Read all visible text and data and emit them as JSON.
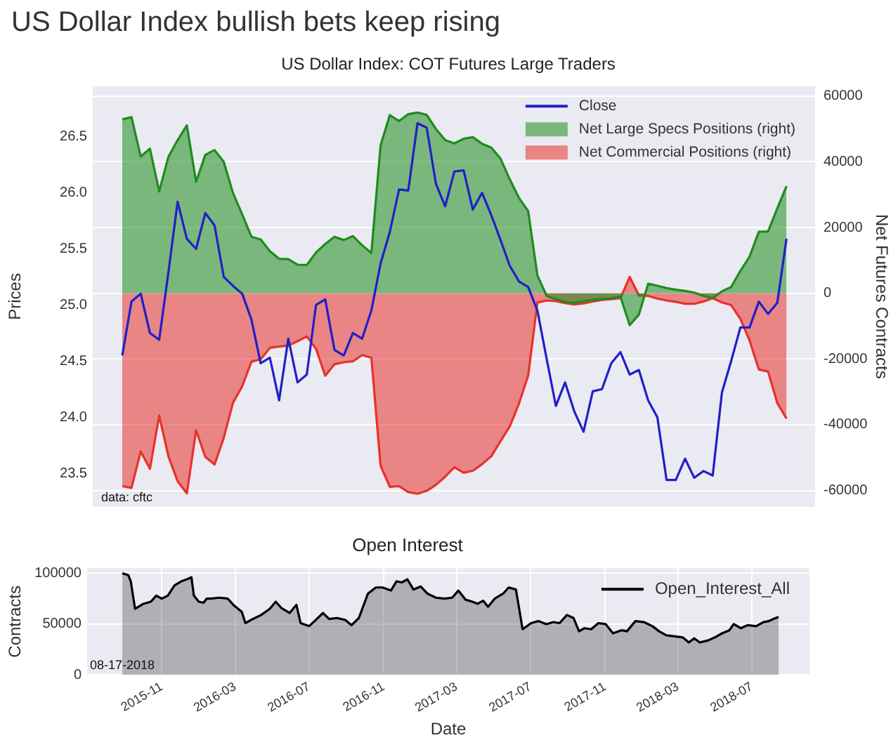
{
  "chart_data": [
    {
      "type": "line",
      "title": "US Dollar Index bullish bets keep rising",
      "subtitle": "US Dollar Index: COT Futures Large Traders",
      "ylabel": "Prices",
      "y2label": "Net Futures Contracts",
      "categories": [
        null,
        null,
        null,
        null,
        null,
        null,
        null,
        null,
        null,
        null,
        null,
        null,
        null,
        null,
        null,
        null,
        null,
        null,
        null,
        null,
        null,
        null,
        null,
        null,
        null,
        null,
        null,
        null,
        null,
        null,
        null,
        null,
        null,
        null,
        null,
        null,
        null,
        null,
        null,
        null,
        null,
        null,
        null,
        null,
        null,
        null,
        null,
        null,
        null,
        null,
        null,
        null,
        null,
        null,
        null,
        null,
        null,
        null,
        null,
        null,
        null,
        null,
        null,
        null,
        null,
        null,
        null,
        null,
        null,
        null,
        null,
        null,
        null
      ],
      "ylim": [
        23.2,
        26.95
      ],
      "yticks": [
        23.5,
        {
          "value": 24,
          "label": "24.0"
        },
        24.5,
        {
          "value": 25,
          "label": "25.0"
        },
        25.5,
        {
          "value": 26,
          "label": "26.0"
        },
        26.5
      ],
      "y2lim": [
        -65000,
        63000
      ],
      "y2ticks": [
        -60000,
        -40000,
        -20000,
        0,
        20000,
        40000,
        60000
      ],
      "tick_labels": "y",
      "grid": "y",
      "legend": "top right",
      "annotations": [
        "data: cftc"
      ],
      "series": [
        {
          "name": "Close",
          "type": "line",
          "color": "#2020c8",
          "values": [
            24.55,
            25.03,
            25.1,
            24.75,
            24.69,
            25.29,
            25.92,
            25.59,
            25.5,
            25.82,
            25.71,
            25.25,
            25.17,
            25.1,
            24.87,
            24.48,
            24.53,
            24.15,
            24.7,
            24.31,
            24.38,
            25.0,
            25.05,
            24.6,
            24.55,
            24.75,
            24.7,
            24.95,
            25.37,
            25.65,
            26.03,
            26.02,
            26.62,
            26.58,
            26.08,
            25.88,
            26.19,
            26.2,
            25.85,
            26.0,
            25.8,
            25.58,
            25.35,
            25.21,
            25.16,
            24.95,
            24.52,
            24.1,
            24.31,
            24.05,
            23.87,
            24.23,
            24.25,
            24.48,
            24.58,
            24.38,
            24.42,
            24.15,
            24.0,
            23.44,
            23.44,
            23.63,
            23.46,
            23.52,
            23.48,
            24.22,
            24.5,
            24.8,
            24.8,
            25.03,
            24.92,
            25.02,
            25.59
          ]
        },
        {
          "name": "Net Large Specs Positions (right)",
          "type": "area",
          "axis": "y2",
          "color": "#1e8c1e",
          "values": [
            52900,
            53600,
            41600,
            44000,
            31000,
            41500,
            46600,
            51100,
            33900,
            42100,
            43600,
            40000,
            30500,
            24000,
            17200,
            16400,
            12800,
            10500,
            10400,
            8700,
            8600,
            12400,
            15000,
            17200,
            16200,
            17400,
            14600,
            12300,
            45000,
            54200,
            52400,
            54500,
            55000,
            54300,
            50000,
            46600,
            45600,
            47000,
            47500,
            45500,
            44300,
            41000,
            34700,
            29000,
            25000,
            5400,
            -800,
            -1800,
            -2600,
            -2900,
            -2400,
            -2000,
            -1800,
            -1500,
            -1000,
            -9700,
            -6500,
            2900,
            2300,
            1600,
            1100,
            700,
            200,
            -800,
            -1500,
            600,
            1900,
            6800,
            11200,
            18700,
            18800,
            25800,
            32600
          ]
        },
        {
          "name": "Net Commercial Positions (right)",
          "type": "area",
          "axis": "y2",
          "color": "#e8312b",
          "values": [
            -58700,
            -59200,
            -48100,
            -53400,
            -37200,
            -49600,
            -57200,
            -60900,
            -41700,
            -49800,
            -52100,
            -44000,
            -33300,
            -28300,
            -20800,
            -20100,
            -16600,
            -16200,
            -15900,
            -14600,
            -13100,
            -16900,
            -25100,
            -21600,
            -21000,
            -20700,
            -18800,
            -19600,
            -52500,
            -58900,
            -58700,
            -60500,
            -61000,
            -60100,
            -58300,
            -55800,
            -52900,
            -54600,
            -54000,
            -52000,
            -49600,
            -45000,
            -40500,
            -33600,
            -25000,
            -2800,
            -2200,
            -2400,
            -3000,
            -3400,
            -3100,
            -2500,
            -2000,
            -1800,
            -1500,
            5000,
            -700,
            -800,
            -1600,
            -2200,
            -2600,
            -3200,
            -3200,
            -2500,
            -1500,
            -2800,
            -3600,
            -7800,
            -14400,
            -23200,
            -23800,
            -33400,
            -38100
          ]
        }
      ]
    },
    {
      "type": "area",
      "title": "Open Interest",
      "xlabel": "Date",
      "ylabel": "Contracts",
      "xlim": [
        "2015-07-01",
        "2018-10-04"
      ],
      "xticks": [
        "2015-11",
        "2016-03",
        "2016-07",
        "2016-11",
        "2017-03",
        "2017-07",
        "2017-11",
        "2018-03",
        "2018-07"
      ],
      "ylim": [
        0,
        105000
      ],
      "yticks": [
        0,
        50000,
        100000
      ],
      "grid": true,
      "legend": "top right",
      "annotations": [
        "08-17-2018"
      ],
      "series": [
        {
          "name": "Open_Interest_All",
          "color": "#000000",
          "x": [
            "2015-08-28",
            "2015-09-07",
            "2015-09-11",
            "2015-09-18",
            "2015-10-02",
            "2015-10-14",
            "2015-10-23",
            "2015-11-01",
            "2015-11-11",
            "2015-11-22",
            "2015-12-03",
            "2015-12-12",
            "2015-12-20",
            "2015-12-24",
            "2016-01-01",
            "2016-01-09",
            "2016-01-14",
            "2016-01-21",
            "2016-02-04",
            "2016-02-18",
            "2016-02-27",
            "2016-03-12",
            "2016-03-18",
            "2016-03-30",
            "2016-04-13",
            "2016-04-27",
            "2016-05-07",
            "2016-05-16",
            "2016-05-30",
            "2016-06-10",
            "2016-06-17",
            "2016-07-01",
            "2016-07-10",
            "2016-07-24",
            "2016-08-03",
            "2016-08-16",
            "2016-08-30",
            "2016-09-09",
            "2016-09-21",
            "2016-10-06",
            "2016-10-19",
            "2016-10-30",
            "2016-11-13",
            "2016-11-22",
            "2016-12-01",
            "2016-12-10",
            "2016-12-20",
            "2017-01-01",
            "2017-01-12",
            "2017-01-26",
            "2017-02-09",
            "2017-02-22",
            "2017-03-04",
            "2017-03-16",
            "2017-03-27",
            "2017-04-05",
            "2017-04-14",
            "2017-04-22",
            "2017-05-03",
            "2017-05-17",
            "2017-05-26",
            "2017-06-07",
            "2017-06-18",
            "2017-07-02",
            "2017-07-14",
            "2017-07-27",
            "2017-08-08",
            "2017-08-18",
            "2017-08-30",
            "2017-09-10",
            "2017-09-19",
            "2017-09-28",
            "2017-10-09",
            "2017-10-21",
            "2017-11-02",
            "2017-11-14",
            "2017-11-28",
            "2017-12-07",
            "2017-12-21",
            "2018-01-04",
            "2018-01-18",
            "2018-01-29",
            "2018-02-10",
            "2018-02-24",
            "2018-03-09",
            "2018-03-19",
            "2018-03-28",
            "2018-04-06",
            "2018-04-20",
            "2018-05-01",
            "2018-05-13",
            "2018-05-25",
            "2018-06-01",
            "2018-06-13",
            "2018-06-24",
            "2018-07-08",
            "2018-07-20",
            "2018-07-29",
            "2018-08-05",
            "2018-08-14"
          ],
          "values": [
            100000,
            98000,
            92000,
            65000,
            70000,
            72000,
            78000,
            75000,
            78000,
            88000,
            92000,
            94000,
            96000,
            78000,
            72000,
            71000,
            75000,
            75000,
            76000,
            75000,
            69000,
            62000,
            51000,
            55000,
            59000,
            65000,
            72000,
            66000,
            61000,
            69000,
            51000,
            48000,
            53000,
            61000,
            55000,
            56000,
            54000,
            49000,
            56000,
            80000,
            86000,
            86000,
            83000,
            92000,
            91000,
            94000,
            84000,
            87000,
            80000,
            76000,
            75000,
            76000,
            83000,
            74000,
            72000,
            70000,
            73000,
            67000,
            75000,
            80000,
            86000,
            84000,
            45000,
            51000,
            53000,
            50000,
            52000,
            51000,
            59000,
            56000,
            43000,
            46000,
            45000,
            51000,
            50000,
            41000,
            44000,
            43000,
            53000,
            52000,
            48000,
            43000,
            39000,
            38000,
            37000,
            32000,
            36000,
            32000,
            34000,
            37000,
            41000,
            44000,
            50000,
            46000,
            49000,
            48000,
            52000,
            53000,
            55000,
            57000
          ]
        }
      ]
    }
  ]
}
